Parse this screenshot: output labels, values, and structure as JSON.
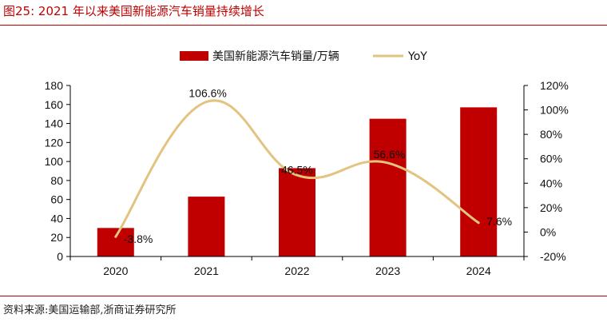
{
  "figure": {
    "title": "图25:   2021 年以来美国新能源汽车销量持续增长",
    "source": "资料来源:美国运输部,浙商证券研究所"
  },
  "chart_data": {
    "type": "bar",
    "categories": [
      "2020",
      "2021",
      "2022",
      "2023",
      "2024"
    ],
    "series": [
      {
        "name": "美国新能源汽车销量/万辆",
        "type": "bar",
        "axis": "left",
        "values": [
          30,
          63,
          93,
          145,
          157
        ],
        "color": "#c00000"
      },
      {
        "name": "YoY",
        "type": "line",
        "axis": "right",
        "values": [
          -3.8,
          106.6,
          46.5,
          56.6,
          7.6
        ],
        "color": "#e2c37f",
        "labels": [
          "-3.8%",
          "106.6%",
          "46.5%",
          "56.6%",
          "7.6%"
        ]
      }
    ],
    "y_left": {
      "min": 0,
      "max": 180,
      "step": 20,
      "ticks": [
        "0",
        "20",
        "40",
        "60",
        "80",
        "100",
        "120",
        "140",
        "160",
        "180"
      ]
    },
    "y_right": {
      "min": -20,
      "max": 120,
      "step": 20,
      "ticks": [
        "-20%",
        "0%",
        "20%",
        "40%",
        "60%",
        "80%",
        "100%",
        "120%"
      ]
    },
    "legend": {
      "position": "top"
    },
    "grid": false
  }
}
